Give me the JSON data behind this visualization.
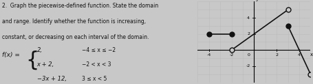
{
  "text_lines": [
    "2.  Graph the piecewise-defined function. State the domain",
    "and range. Identify whether the function is increasing,",
    "constant, or decreasing on each interval of the domain."
  ],
  "func_text": "f(x) =",
  "piece1": "2,",
  "piece2": "x + 2,",
  "piece3": "−3x + 12,",
  "cond1": "−4 ≤ x ≤ −2",
  "cond2": "−2 < x < 3",
  "cond3": "3 ≤ x < 5",
  "segments": [
    {
      "x_start": -4,
      "x_end": -2,
      "y_start": 2,
      "y_end": 2,
      "left_closed": true,
      "right_closed": true
    },
    {
      "x_start": -2,
      "x_end": 3,
      "y_start": 0,
      "y_end": 5,
      "left_closed": false,
      "right_closed": false
    },
    {
      "x_start": 3,
      "x_end": 5,
      "y_start": 3,
      "y_end": -3,
      "left_closed": true,
      "right_closed": false
    }
  ],
  "xlim": [
    -5,
    5
  ],
  "ylim": [
    -4,
    6
  ],
  "xticks": [
    -4,
    -2,
    0,
    2,
    4
  ],
  "yticks": [
    -2,
    0,
    2,
    4
  ],
  "grid_color": "#bbbbbb",
  "axis_color": "#000000",
  "line_color": "#111111",
  "line_width": 1.2,
  "dot_size": 25,
  "background_color": "#c8c8c8",
  "text_color": "#111111",
  "figsize": [
    4.56,
    1.23
  ],
  "dpi": 100
}
